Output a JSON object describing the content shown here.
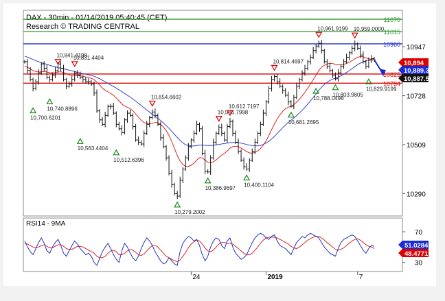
{
  "chart_data": [
    {
      "type": "line",
      "title": "DAX - 30min - 01/14/2019 05:40:45 (CET)",
      "subtitle": "Research © TRADING CENTRAL",
      "y_ticks": [
        10290,
        10509,
        10728,
        10947
      ],
      "ylim": [
        10190,
        11110
      ],
      "x_labels": [
        {
          "label": "24",
          "index": 60
        },
        {
          "label": "2019",
          "index": 87
        },
        {
          "label": "7",
          "index": 120
        }
      ],
      "levels": [
        {
          "name": "resistance-3",
          "value": 11070,
          "label": "11070",
          "color": "#2e9b2e"
        },
        {
          "name": "resistance-2",
          "value": 11015,
          "label": "11015",
          "color": "#2e9b2e"
        },
        {
          "name": "resistance-1",
          "value": 10960,
          "label": "10960",
          "color": "#2233cc"
        },
        {
          "name": "pivot",
          "value": 10825,
          "label": "10825",
          "color": "#dd0000"
        },
        {
          "name": "support-1",
          "value": 10784,
          "label": "10784",
          "color": "#dd0000"
        }
      ],
      "price_tags": [
        {
          "name": "price-tag-red",
          "value": 10894,
          "label": "10,894",
          "color": "#dd0000"
        },
        {
          "name": "price-tag-blue",
          "value": 10889.3,
          "label": "10,889.3",
          "color": "#1a2bd6"
        },
        {
          "name": "price-tag-last",
          "value": 10887.5,
          "label": "10,887.5",
          "color": "#111111"
        }
      ],
      "price": [
        10880,
        10840,
        10800,
        10760,
        10790,
        10830,
        10870,
        10850,
        10810,
        10800,
        10820,
        10840,
        10870,
        10850,
        10800,
        10770,
        10780,
        10800,
        10830,
        10820,
        10810,
        10800,
        10790,
        10790,
        10780,
        10740,
        10660,
        10620,
        10600,
        10640,
        10680,
        10680,
        10650,
        10600,
        10580,
        10563,
        10620,
        10650,
        10640,
        10590,
        10530,
        10520,
        10512,
        10560,
        10600,
        10630,
        10655,
        10640,
        10600,
        10540,
        10500,
        10450,
        10380,
        10330,
        10290,
        10279,
        10350,
        10400,
        10450,
        10500,
        10530,
        10560,
        10600,
        10580,
        10470,
        10390,
        10387,
        10450,
        10520,
        10560,
        10587,
        10560,
        10530,
        10590,
        10613,
        10560,
        10520,
        10480,
        10440,
        10410,
        10400,
        10440,
        10480,
        10520,
        10560,
        10600,
        10650,
        10700,
        10760,
        10800,
        10814,
        10790,
        10770,
        10750,
        10730,
        10700,
        10681,
        10720,
        10770,
        10800,
        10830,
        10850,
        10880,
        10900,
        10930,
        10950,
        10962,
        10930,
        10880,
        10860,
        10840,
        10820,
        10804,
        10830,
        10860,
        10880,
        10900,
        10920,
        10940,
        10959,
        10940,
        10910,
        10880,
        10860,
        10887,
        10894,
        10888
      ],
      "ma_red": [
        10860,
        10855,
        10848,
        10840,
        10836,
        10834,
        10835,
        10836,
        10834,
        10831,
        10830,
        10831,
        10834,
        10835,
        10832,
        10826,
        10821,
        10818,
        10818,
        10818,
        10817,
        10815,
        10812,
        10809,
        10806,
        10800,
        10789,
        10776,
        10762,
        10752,
        10745,
        10738,
        10730,
        10718,
        10705,
        10691,
        10682,
        10676,
        10670,
        10660,
        10646,
        10632,
        10618,
        10608,
        10603,
        10602,
        10605,
        10608,
        10607,
        10600,
        10588,
        10572,
        10550,
        10523,
        10492,
        10460,
        10436,
        10420,
        10412,
        10412,
        10417,
        10426,
        10440,
        10451,
        10450,
        10440,
        10430,
        10428,
        10432,
        10441,
        10452,
        10462,
        10470,
        10481,
        10493,
        10500,
        10502,
        10500,
        10494,
        10486,
        10478,
        10472,
        10471,
        10474,
        10481,
        10492,
        10507,
        10526,
        10550,
        10576,
        10602,
        10624,
        10643,
        10658,
        10669,
        10677,
        10681,
        10688,
        10699,
        10712,
        10727,
        10743,
        10761,
        10780,
        10800,
        10820,
        10840,
        10855,
        10864,
        10870,
        10873,
        10872,
        10868,
        10866,
        10866,
        10868,
        10872,
        10878,
        10885,
        10893,
        10900,
        10903,
        10902,
        10897,
        10893,
        10891,
        10890
      ],
      "ma_blue": [
        10905,
        10900,
        10895,
        10890,
        10885,
        10880,
        10876,
        10872,
        10868,
        10864,
        10860,
        10857,
        10854,
        10851,
        10848,
        10845,
        10842,
        10839,
        10836,
        10833,
        10830,
        10827,
        10824,
        10821,
        10818,
        10815,
        10810,
        10804,
        10797,
        10790,
        10783,
        10776,
        10769,
        10762,
        10754,
        10746,
        10738,
        10730,
        10722,
        10713,
        10704,
        10694,
        10684,
        10674,
        10664,
        10654,
        10645,
        10636,
        10627,
        10617,
        10606,
        10594,
        10582,
        10569,
        10555,
        10541,
        10528,
        10517,
        10509,
        10505,
        10503,
        10503,
        10505,
        10507,
        10507,
        10506,
        10505,
        10505,
        10506,
        10508,
        10510,
        10512,
        10514,
        10516,
        10518,
        10519,
        10519,
        10518,
        10516,
        10513,
        10510,
        10507,
        10505,
        10504,
        10504,
        10506,
        10510,
        10516,
        10524,
        10534,
        10546,
        10559,
        10572,
        10585,
        10597,
        10608,
        10618,
        10628,
        10639,
        10651,
        10663,
        10676,
        10690,
        10705,
        10720,
        10736,
        10752,
        10766,
        10778,
        10788,
        10796,
        10802,
        10806,
        10811,
        10817,
        10824,
        10832,
        10840,
        10849,
        10858,
        10867,
        10874,
        10880,
        10884,
        10887,
        10889,
        10890
      ],
      "swing_labels": [
        {
          "text": "10,841.4198",
          "index": 12,
          "value": 10841.4198,
          "kind": "high"
        },
        {
          "text": "10,831.4404",
          "index": 18,
          "value": 10831.4404,
          "kind": "high"
        },
        {
          "text": "10,654.6602",
          "index": 46,
          "value": 10654.6602,
          "kind": "high"
        },
        {
          "text": "10,586.7998",
          "index": 70,
          "value": 10586.7998,
          "kind": "high"
        },
        {
          "text": "10,612.7197",
          "index": 74,
          "value": 10612.7197,
          "kind": "high"
        },
        {
          "text": "10,814.4697",
          "index": 90,
          "value": 10814.4697,
          "kind": "high"
        },
        {
          "text": "10,961.9199",
          "index": 106,
          "value": 10961.9199,
          "kind": "high"
        },
        {
          "text": "10,959.0000",
          "index": 119,
          "value": 10959.0,
          "kind": "high"
        },
        {
          "text": "10,700.6201",
          "index": 3,
          "value": 10700.6201,
          "kind": "low"
        },
        {
          "text": "10,740.8896",
          "index": 9,
          "value": 10740.8896,
          "kind": "low"
        },
        {
          "text": "10,563.4404",
          "index": 20,
          "value": 10563.4404,
          "kind": "low"
        },
        {
          "text": "10,512.6396",
          "index": 33,
          "value": 10512.6396,
          "kind": "low"
        },
        {
          "text": "10,279.2002",
          "index": 55,
          "value": 10279.2002,
          "kind": "low"
        },
        {
          "text": "10,386.9697",
          "index": 66,
          "value": 10386.9697,
          "kind": "low"
        },
        {
          "text": "10,400.1104",
          "index": 80,
          "value": 10400.1104,
          "kind": "low"
        },
        {
          "text": "10,681.2695",
          "index": 96,
          "value": 10681.2695,
          "kind": "low"
        },
        {
          "text": "10,803.9805",
          "index": 112,
          "value": 10803.9805,
          "kind": "low"
        },
        {
          "text": "10,788.0498",
          "index": 105,
          "value": 10788.0498,
          "kind": "low"
        },
        {
          "text": "10,829.9199",
          "index": 124,
          "value": 10829.9199,
          "kind": "low"
        }
      ]
    },
    {
      "type": "line",
      "title": "RSI14 - 9MA",
      "y_ticks": [
        30,
        70
      ],
      "ylim": [
        18,
        88
      ],
      "tags": [
        {
          "name": "rsi-tag",
          "value": 51.0284,
          "label": "51.0284",
          "color": "#1a2bd6"
        },
        {
          "name": "rsi-ma-tag",
          "value": 48.4771,
          "label": "48.4771",
          "color": "#dd0000"
        }
      ],
      "rsi": [
        58,
        50,
        44,
        40,
        48,
        56,
        62,
        55,
        45,
        42,
        50,
        56,
        60,
        52,
        42,
        38,
        45,
        52,
        58,
        54,
        48,
        44,
        40,
        42,
        38,
        30,
        26,
        35,
        44,
        50,
        55,
        48,
        40,
        34,
        30,
        45,
        55,
        50,
        42,
        36,
        32,
        38,
        48,
        56,
        62,
        58,
        52,
        44,
        38,
        32,
        28,
        30,
        36,
        32,
        28,
        26,
        44,
        55,
        60,
        64,
        62,
        58,
        60,
        52,
        40,
        32,
        38,
        50,
        58,
        62,
        60,
        52,
        48,
        58,
        62,
        50,
        42,
        38,
        34,
        36,
        40,
        48,
        56,
        62,
        66,
        68,
        66,
        62,
        60,
        64,
        66,
        58,
        52,
        50,
        48,
        44,
        40,
        48,
        56,
        60,
        64,
        62,
        66,
        68,
        66,
        64,
        62,
        56,
        50,
        46,
        42,
        40,
        38,
        48,
        56,
        60,
        62,
        64,
        66,
        64,
        58,
        52,
        46,
        42,
        48,
        52,
        51
      ],
      "rsi_ma": [
        55,
        54,
        52,
        50,
        49,
        50,
        52,
        53,
        51,
        49,
        49,
        51,
        53,
        53,
        51,
        48,
        47,
        47,
        49,
        51,
        51,
        50,
        48,
        46,
        44,
        42,
        38,
        36,
        36,
        38,
        42,
        45,
        46,
        44,
        40,
        40,
        42,
        45,
        47,
        46,
        43,
        40,
        39,
        41,
        45,
        49,
        52,
        52,
        50,
        46,
        42,
        38,
        36,
        34,
        32,
        31,
        33,
        38,
        43,
        49,
        54,
        57,
        59,
        58,
        54,
        49,
        45,
        44,
        46,
        50,
        54,
        56,
        56,
        55,
        55,
        54,
        51,
        48,
        45,
        42,
        40,
        40,
        42,
        46,
        50,
        55,
        59,
        62,
        63,
        63,
        63,
        62,
        60,
        58,
        56,
        54,
        51,
        49,
        48,
        50,
        53,
        56,
        59,
        61,
        63,
        64,
        64,
        62,
        59,
        56,
        53,
        50,
        47,
        46,
        47,
        49,
        52,
        55,
        58,
        60,
        61,
        59,
        56,
        53,
        51,
        50,
        48
      ]
    }
  ],
  "time_axis": {
    "labels": [
      "24",
      "2019",
      "7"
    ]
  }
}
